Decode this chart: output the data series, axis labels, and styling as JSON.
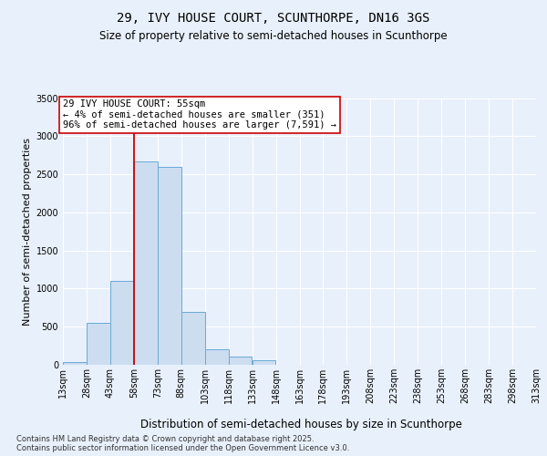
{
  "title": "29, IVY HOUSE COURT, SCUNTHORPE, DN16 3GS",
  "subtitle": "Size of property relative to semi-detached houses in Scunthorpe",
  "xlabel": "Distribution of semi-detached houses by size in Scunthorpe",
  "ylabel": "Number of semi-detached properties",
  "bar_color": "#ccddf0",
  "bar_edge_color": "#6aaad4",
  "background_color": "#e8f0fb",
  "grid_color": "#ffffff",
  "annotation_text": "29 IVY HOUSE COURT: 55sqm\n← 4% of semi-detached houses are smaller (351)\n96% of semi-detached houses are larger (7,591) →",
  "vline_x": 58,
  "vline_color": "#cc0000",
  "footer_line1": "Contains HM Land Registry data © Crown copyright and database right 2025.",
  "footer_line2": "Contains public sector information licensed under the Open Government Licence v3.0.",
  "bin_edges": [
    13,
    28,
    43,
    58,
    73,
    88,
    103,
    118,
    133,
    148,
    163,
    178,
    193,
    208,
    223,
    238,
    253,
    268,
    283,
    298,
    313
  ],
  "bar_heights": [
    40,
    550,
    1100,
    2670,
    2600,
    700,
    200,
    110,
    55,
    0,
    0,
    0,
    0,
    0,
    0,
    0,
    0,
    0,
    0,
    0
  ],
  "ylim": [
    0,
    3500
  ],
  "yticks": [
    0,
    500,
    1000,
    1500,
    2000,
    2500,
    3000,
    3500
  ],
  "title_fontsize": 10,
  "subtitle_fontsize": 8.5,
  "ylabel_fontsize": 8,
  "xlabel_fontsize": 8.5,
  "tick_fontsize": 7,
  "annotation_fontsize": 7.5,
  "footer_fontsize": 6
}
